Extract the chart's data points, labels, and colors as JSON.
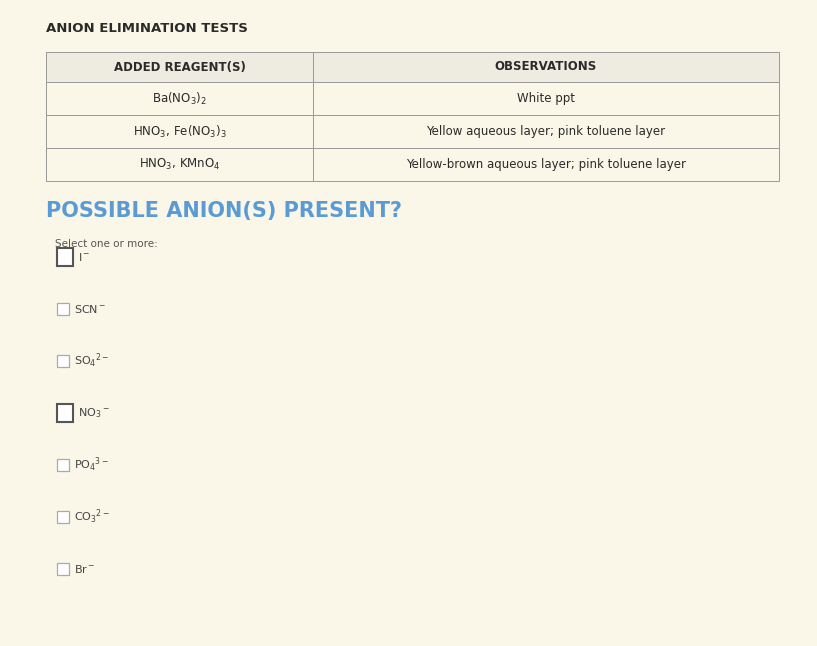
{
  "title": "ANION ELIMINATION TESTS",
  "bg_color": "#faf6e8",
  "table_header_col1": "ADDED REAGENT(S)",
  "table_header_col2": "OBSERVATIONS",
  "table_rows": [
    [
      "Ba(NO$_3$)$_2$",
      "White ppt"
    ],
    [
      "HNO$_3$, Fe(NO$_3$)$_3$",
      "Yellow aqueous layer; pink toluene layer"
    ],
    [
      "HNO$_3$, KMnO$_4$",
      "Yellow-brown aqueous layer; pink toluene layer"
    ]
  ],
  "section2_title": "POSSIBLE ANION(S) PRESENT?",
  "section2_color": "#5b9bd5",
  "select_label": "Select one or more:",
  "checkboxes": [
    {
      "label": "I$^-$",
      "large": true
    },
    {
      "label": "SCN$^-$",
      "large": false
    },
    {
      "label": "SO$_4$$^{2-}$",
      "large": false
    },
    {
      "label": "NO$_3$$^-$",
      "large": true
    },
    {
      "label": "PO$_4$$^{3-}$",
      "large": false
    },
    {
      "label": "CO$_3$$^{2-}$",
      "large": false
    },
    {
      "label": "Br$^-$",
      "large": false
    }
  ],
  "title_color": "#2a2a2a",
  "header_bg": "#eeebe0",
  "row_bg": "#faf6e8",
  "border_color": "#999999",
  "cb_border_large": "#555555",
  "cb_border_small": "#aaaaaa"
}
